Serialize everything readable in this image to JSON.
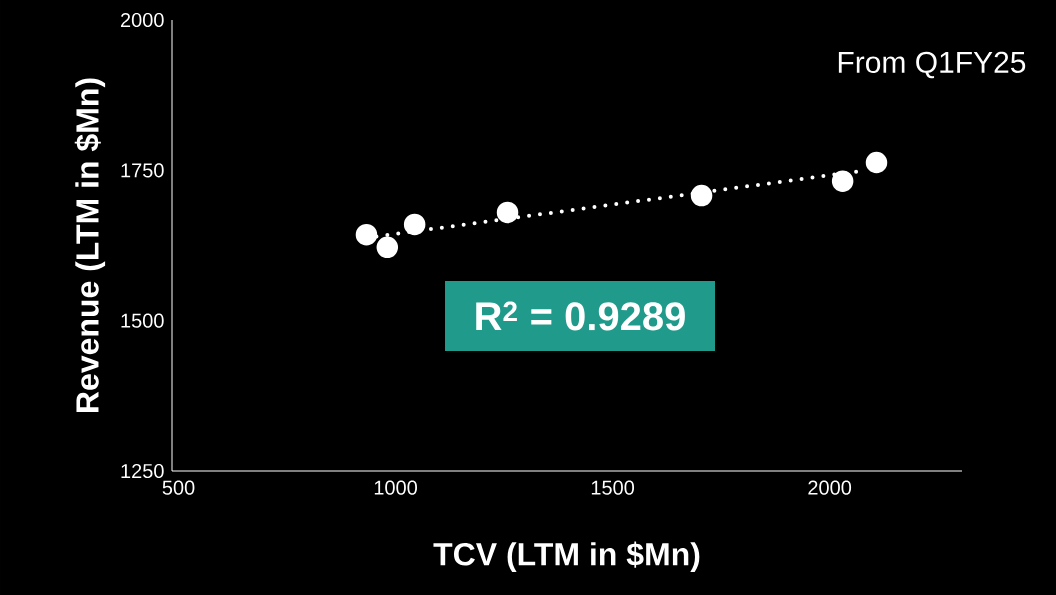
{
  "chart_data": {
    "type": "scatter",
    "xlabel": "TCV (LTM in $Mn)",
    "ylabel": "Revenue (LTM in $Mn)",
    "annotations": [
      "From Q1FY25",
      "R$^{2}$ = 0.9289"
    ],
    "xlim": [
      485,
      2305
    ],
    "ylim": [
      1250,
      2000
    ],
    "xticks": [
      500,
      1000,
      1500,
      2000
    ],
    "yticks": [
      1250,
      1500,
      1750,
      2000
    ],
    "series": [
      {
        "type": "line",
        "color": "#ffffff",
        "line_style": "dotted",
        "marker": "none",
        "x": [
          956,
          2083
        ],
        "values": [
          1640,
          1750
        ]
      },
      {
        "color": "#ffffff",
        "marker": "circle",
        "x": [
          933,
          981,
          1044,
          1258,
          1705,
          2030,
          2108
        ],
        "values": [
          1643,
          1622,
          1660,
          1680,
          1708,
          1732,
          1763
        ]
      }
    ]
  }
}
